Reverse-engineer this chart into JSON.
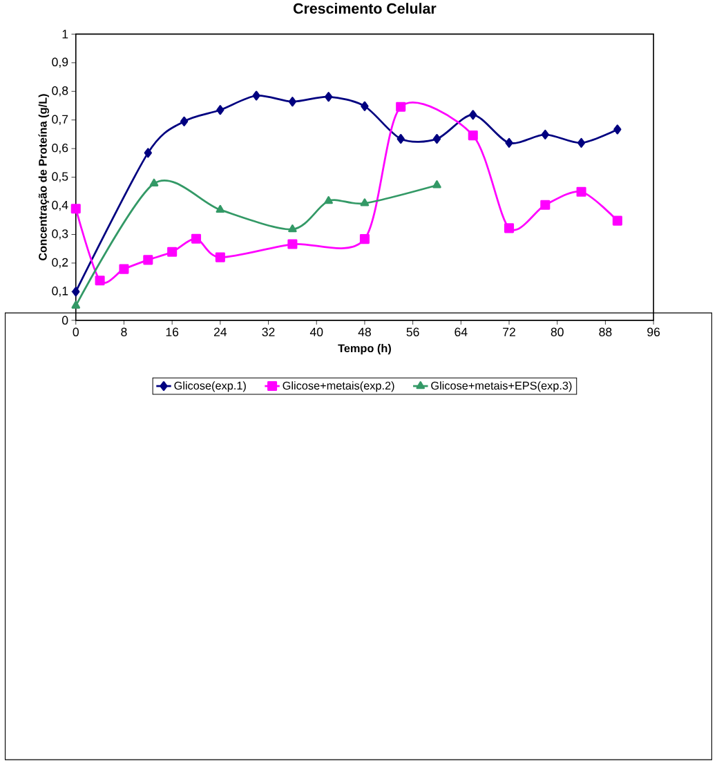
{
  "chart_data": {
    "type": "line",
    "title": "Crescimento Celular",
    "xlabel": "Tempo (h)",
    "ylabel": "Concentração de Proteína (g/L)",
    "series": [
      {
        "name": "Glicose(exp.1)",
        "color": "#000080",
        "marker": "diamond",
        "x": [
          0,
          12,
          18,
          24,
          30,
          36,
          42,
          48,
          54,
          60,
          66,
          72,
          78,
          84,
          90
        ],
        "values": [
          0.1,
          0.585,
          0.695,
          0.735,
          0.785,
          0.764,
          0.781,
          0.748,
          0.634,
          0.634,
          0.718,
          0.62,
          0.649,
          0.62,
          0.667
        ]
      },
      {
        "name": "Glicose+metais(exp.2)",
        "color": "#ff00ff",
        "marker": "square",
        "x": [
          0,
          4,
          8,
          12,
          16,
          20,
          24,
          36,
          48,
          54,
          66,
          72,
          78,
          84,
          90
        ],
        "values": [
          0.39,
          0.139,
          0.179,
          0.211,
          0.239,
          0.285,
          0.22,
          0.266,
          0.284,
          0.746,
          0.646,
          0.322,
          0.403,
          0.449,
          0.348
        ]
      },
      {
        "name": "Glicose+metais+EPS(exp.3)",
        "color": "#339966",
        "marker": "triangle",
        "x": [
          0,
          13,
          24,
          36,
          42,
          48,
          60
        ],
        "values": [
          0.051,
          0.478,
          0.386,
          0.318,
          0.417,
          0.409,
          0.472
        ]
      }
    ],
    "xlim": [
      0,
      96
    ],
    "xticks": [
      0,
      8,
      16,
      24,
      32,
      40,
      48,
      56,
      64,
      72,
      80,
      88,
      96
    ],
    "ylim": [
      0,
      1
    ],
    "yticks": [
      0,
      {
        "value": 0.1,
        "label": "0,1"
      },
      {
        "value": 0.2,
        "label": "0,2"
      },
      {
        "value": 0.3,
        "label": "0,3"
      },
      {
        "value": 0.4,
        "label": "0,4"
      },
      {
        "value": 0.5,
        "label": "0,5"
      },
      {
        "value": 0.6,
        "label": "0,6"
      },
      {
        "value": 0.7,
        "label": "0,7"
      },
      {
        "value": 0.8,
        "label": "0,8"
      },
      {
        "value": 0.9,
        "label": "0,9"
      },
      1
    ],
    "grid": false,
    "legend": "bottom",
    "line_style": "solid"
  }
}
